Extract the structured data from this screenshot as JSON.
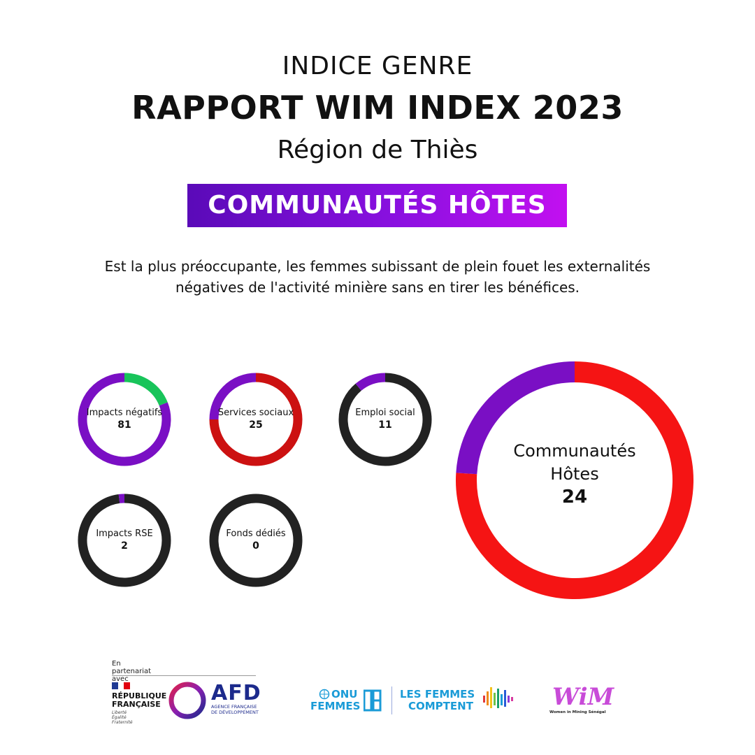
{
  "header": {
    "supertitle": "INDICE GENRE",
    "title": "RAPPORT WIM INDEX 2023",
    "region": "Région de Thiès"
  },
  "banner": {
    "label": "COMMUNAUTÉS HÔTES"
  },
  "description": {
    "line1": "Est la plus préoccupante, les femmes subissant de plein fouet les externalités",
    "line2": "négatives de l'activité minière sans en tirer les bénéfices."
  },
  "chart_data": {
    "type": "donut",
    "title": "",
    "colors": {
      "purple": "#7a0fc4",
      "red": "#cc1111",
      "bright_red": "#f51414",
      "green": "#18c45a",
      "dark": "#222222"
    },
    "indicators": [
      {
        "label": "Impacts négatifs",
        "value": 81,
        "segments": [
          {
            "color": "#18c45a",
            "from": 0,
            "to": 0.19
          },
          {
            "color": "#7a0fc4",
            "from": 0.19,
            "to": 1
          }
        ]
      },
      {
        "label": "Services sociaux",
        "value": 25,
        "segments": [
          {
            "color": "#cc1111",
            "from": 0,
            "to": 0.75
          },
          {
            "color": "#7a0fc4",
            "from": 0.75,
            "to": 1
          }
        ]
      },
      {
        "label": "Emploi social",
        "value": 11,
        "segments": [
          {
            "color": "#222222",
            "from": 0,
            "to": 0.89
          },
          {
            "color": "#7a0fc4",
            "from": 0.89,
            "to": 1
          }
        ]
      },
      {
        "label": "Impacts RSE",
        "value": 2,
        "segments": [
          {
            "color": "#222222",
            "from": 0,
            "to": 0.98
          },
          {
            "color": "#7a0fc4",
            "from": 0.98,
            "to": 1
          }
        ]
      },
      {
        "label": "Fonds dédiés",
        "value": 0,
        "segments": [
          {
            "color": "#222222",
            "from": 0,
            "to": 1
          }
        ]
      }
    ],
    "summary": {
      "label_line1": "Communautés",
      "label_line2": "Hôtes",
      "value": 24,
      "segments": [
        {
          "color": "#f51414",
          "from": 0,
          "to": 0.76
        },
        {
          "color": "#7a0fc4",
          "from": 0.76,
          "to": 1
        }
      ]
    }
  },
  "footer": {
    "partner_line1": "En partenariat",
    "partner_line2": "avec",
    "rf_line1": "RÉPUBLIQUE",
    "rf_line2": "FRANÇAISE",
    "rf_motto1": "Liberté",
    "rf_motto2": "Égalité",
    "rf_motto3": "Fraternité",
    "afd_name": "AFD",
    "afd_sub1": "AGENCE FRANÇAISE",
    "afd_sub2": "DE DÉVELOPPEMENT",
    "onu_line1": "ONU",
    "onu_line2": "FEMMES",
    "lfc_line1": "LES FEMMES",
    "lfc_line2": "COMPTENT",
    "wim_logo": "WiM",
    "wim_sub": "Women in Mining Sénégal"
  }
}
